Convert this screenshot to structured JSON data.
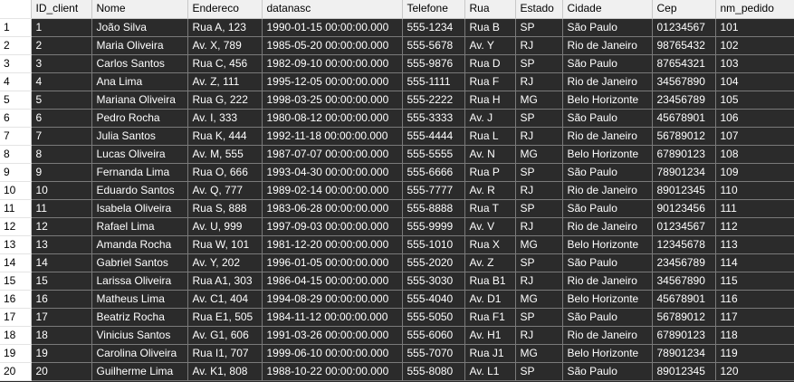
{
  "columns": [
    "ID_client",
    "Nome",
    "Endereco",
    "datanasc",
    "Telefone",
    "Rua",
    "Estado",
    "Cidade",
    "Cep",
    "nm_pedido"
  ],
  "rows": [
    {
      "n": "1",
      "cells": [
        "1",
        "João Silva",
        "Rua A, 123",
        "1990-01-15 00:00:00.000",
        "555-1234",
        "Rua B",
        "SP",
        "São Paulo",
        "01234567",
        "101"
      ]
    },
    {
      "n": "2",
      "cells": [
        "2",
        "Maria Oliveira",
        "Av. X, 789",
        "1985-05-20 00:00:00.000",
        "555-5678",
        "Av. Y",
        "RJ",
        "Rio de Janeiro",
        "98765432",
        "102"
      ]
    },
    {
      "n": "3",
      "cells": [
        "3",
        "Carlos Santos",
        "Rua C, 456",
        "1982-09-10 00:00:00.000",
        "555-9876",
        "Rua D",
        "SP",
        "São Paulo",
        "87654321",
        "103"
      ]
    },
    {
      "n": "4",
      "cells": [
        "4",
        "Ana Lima",
        "Av. Z, 111",
        "1995-12-05 00:00:00.000",
        "555-1111",
        "Rua F",
        "RJ",
        "Rio de Janeiro",
        "34567890",
        "104"
      ]
    },
    {
      "n": "5",
      "cells": [
        "5",
        "Mariana Oliveira",
        "Rua G, 222",
        "1998-03-25 00:00:00.000",
        "555-2222",
        "Rua H",
        "MG",
        "Belo Horizonte",
        "23456789",
        "105"
      ]
    },
    {
      "n": "6",
      "cells": [
        "6",
        "Pedro Rocha",
        "Av. I, 333",
        "1980-08-12 00:00:00.000",
        "555-3333",
        "Av. J",
        "SP",
        "São Paulo",
        "45678901",
        "106"
      ]
    },
    {
      "n": "7",
      "cells": [
        "7",
        "Julia Santos",
        "Rua K, 444",
        "1992-11-18 00:00:00.000",
        "555-4444",
        "Rua L",
        "RJ",
        "Rio de Janeiro",
        "56789012",
        "107"
      ]
    },
    {
      "n": "8",
      "cells": [
        "8",
        "Lucas Oliveira",
        "Av. M, 555",
        "1987-07-07 00:00:00.000",
        "555-5555",
        "Av. N",
        "MG",
        "Belo Horizonte",
        "67890123",
        "108"
      ]
    },
    {
      "n": "9",
      "cells": [
        "9",
        "Fernanda Lima",
        "Rua O, 666",
        "1993-04-30 00:00:00.000",
        "555-6666",
        "Rua P",
        "SP",
        "São Paulo",
        "78901234",
        "109"
      ]
    },
    {
      "n": "10",
      "cells": [
        "10",
        "Eduardo Santos",
        "Av. Q, 777",
        "1989-02-14 00:00:00.000",
        "555-7777",
        "Av. R",
        "RJ",
        "Rio de Janeiro",
        "89012345",
        "110"
      ]
    },
    {
      "n": "11",
      "cells": [
        "11",
        "Isabela Oliveira",
        "Rua S, 888",
        "1983-06-28 00:00:00.000",
        "555-8888",
        "Rua T",
        "SP",
        "São Paulo",
        "90123456",
        "111"
      ]
    },
    {
      "n": "12",
      "cells": [
        "12",
        "Rafael Lima",
        "Av. U, 999",
        "1997-09-03 00:00:00.000",
        "555-9999",
        "Av. V",
        "RJ",
        "Rio de Janeiro",
        "01234567",
        "112"
      ]
    },
    {
      "n": "13",
      "cells": [
        "13",
        "Amanda Rocha",
        "Rua W, 101",
        "1981-12-20 00:00:00.000",
        "555-1010",
        "Rua X",
        "MG",
        "Belo Horizonte",
        "12345678",
        "113"
      ]
    },
    {
      "n": "14",
      "cells": [
        "14",
        "Gabriel Santos",
        "Av. Y, 202",
        "1996-01-05 00:00:00.000",
        "555-2020",
        "Av. Z",
        "SP",
        "São Paulo",
        "23456789",
        "114"
      ]
    },
    {
      "n": "15",
      "cells": [
        "15",
        "Larissa Oliveira",
        "Rua A1, 303",
        "1986-04-15 00:00:00.000",
        "555-3030",
        "Rua B1",
        "RJ",
        "Rio de Janeiro",
        "34567890",
        "115"
      ]
    },
    {
      "n": "16",
      "cells": [
        "16",
        "Matheus Lima",
        "Av. C1, 404",
        "1994-08-29 00:00:00.000",
        "555-4040",
        "Av. D1",
        "MG",
        "Belo Horizonte",
        "45678901",
        "116"
      ]
    },
    {
      "n": "17",
      "cells": [
        "17",
        "Beatriz Rocha",
        "Rua E1, 505",
        "1984-11-12 00:00:00.000",
        "555-5050",
        "Rua F1",
        "SP",
        "São Paulo",
        "56789012",
        "117"
      ]
    },
    {
      "n": "18",
      "cells": [
        "18",
        "Vinicius Santos",
        "Av. G1, 606",
        "1991-03-26 00:00:00.000",
        "555-6060",
        "Av. H1",
        "RJ",
        "Rio de Janeiro",
        "67890123",
        "118"
      ]
    },
    {
      "n": "19",
      "cells": [
        "19",
        "Carolina Oliveira",
        "Rua I1, 707",
        "1999-06-10 00:00:00.000",
        "555-7070",
        "Rua J1",
        "MG",
        "Belo Horizonte",
        "78901234",
        "119"
      ]
    },
    {
      "n": "20",
      "cells": [
        "20",
        "Guilherme Lima",
        "Av. K1, 808",
        "1988-10-22 00:00:00.000",
        "555-8080",
        "Av. L1",
        "SP",
        "São Paulo",
        "89012345",
        "120"
      ]
    }
  ]
}
